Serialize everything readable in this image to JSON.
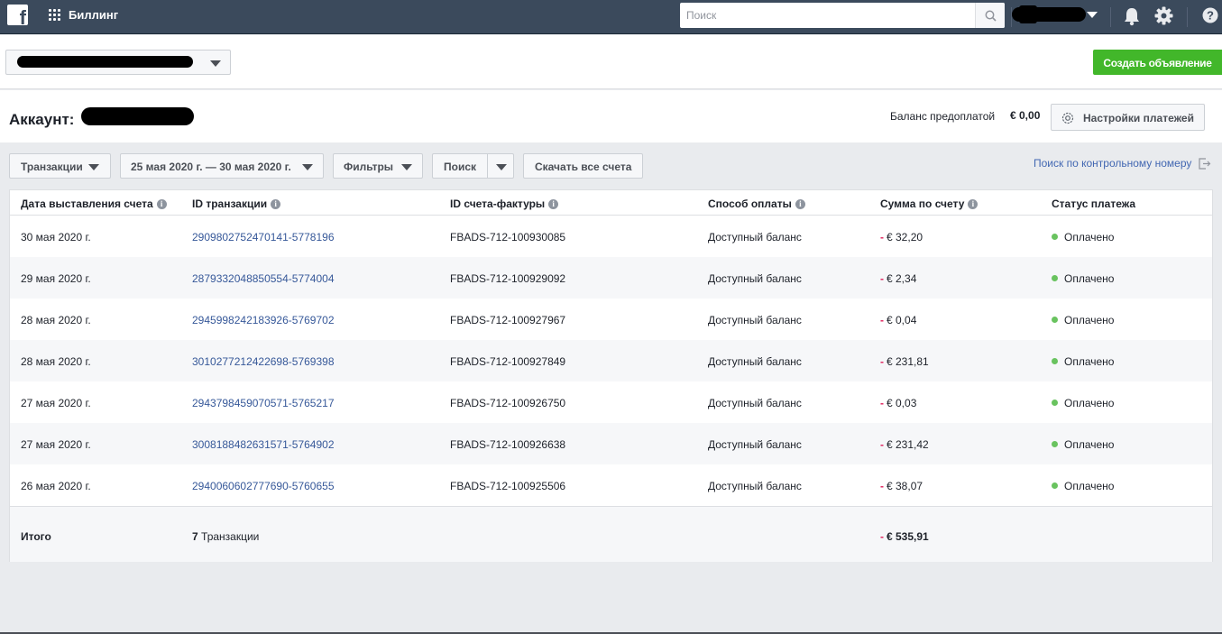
{
  "topbar": {
    "app_title": "Биллинг",
    "search_placeholder": "Поиск",
    "icons": [
      "facebook-logo",
      "apps-grid-icon",
      "search-icon",
      "bell-icon",
      "gear-icon",
      "help-icon"
    ]
  },
  "toolbar": {
    "create_ad_label": "Создать объявление"
  },
  "account": {
    "title_label": "Аккаунт:",
    "balance_label": "Баланс предоплатой",
    "balance_value": "€ 0,00",
    "settings_label": "Настройки платежей"
  },
  "filters": {
    "transactions_label": "Транзакции",
    "date_range": "25 мая 2020 г. — 30 мая 2020 г.",
    "filters_label": "Фильтры",
    "search_label": "Поиск",
    "download_label": "Скачать все счета",
    "control_number_search": "Поиск по контрольному номеру"
  },
  "table": {
    "columns": [
      "Дата выставления счета",
      "ID транзакции",
      "ID счета-фактуры",
      "Способ оплаты",
      "Сумма по счету",
      "Статус платежа"
    ],
    "rows": [
      {
        "date": "30 мая 2020 г.",
        "transaction_id": "2909802752470141-5778196",
        "invoice_id": "FBADS-712-100930085",
        "method": "Доступный баланс",
        "amount": "€ 32,20",
        "status": "Оплачено"
      },
      {
        "date": "29 мая 2020 г.",
        "transaction_id": "2879332048850554-5774004",
        "invoice_id": "FBADS-712-100929092",
        "method": "Доступный баланс",
        "amount": "€ 2,34",
        "status": "Оплачено"
      },
      {
        "date": "28 мая 2020 г.",
        "transaction_id": "2945998242183926-5769702",
        "invoice_id": "FBADS-712-100927967",
        "method": "Доступный баланс",
        "amount": "€ 0,04",
        "status": "Оплачено"
      },
      {
        "date": "28 мая 2020 г.",
        "transaction_id": "3010277212422698-5769398",
        "invoice_id": "FBADS-712-100927849",
        "method": "Доступный баланс",
        "amount": "€ 231,81",
        "status": "Оплачено"
      },
      {
        "date": "27 мая 2020 г.",
        "transaction_id": "2943798459070571-5765217",
        "invoice_id": "FBADS-712-100926750",
        "method": "Доступный баланс",
        "amount": "€ 0,03",
        "status": "Оплачено"
      },
      {
        "date": "27 мая 2020 г.",
        "transaction_id": "3008188482631571-5764902",
        "invoice_id": "FBADS-712-100926638",
        "method": "Доступный баланс",
        "amount": "€ 231,42",
        "status": "Оплачено"
      },
      {
        "date": "26 мая 2020 г.",
        "transaction_id": "2940060602777690-5760655",
        "invoice_id": "FBADS-712-100925506",
        "method": "Доступный баланс",
        "amount": "€ 38,07",
        "status": "Оплачено"
      }
    ],
    "total_label": "Итого",
    "total_count": "7",
    "total_count_label": "Транзакции",
    "total_amount": "€ 535,91",
    "minus_sign": "-"
  },
  "colors": {
    "topbar": "#3b4a5c",
    "create_button": "#42b72a",
    "link": "#365899",
    "minus": "#e0245e",
    "paid_dot": "#69c35f"
  }
}
